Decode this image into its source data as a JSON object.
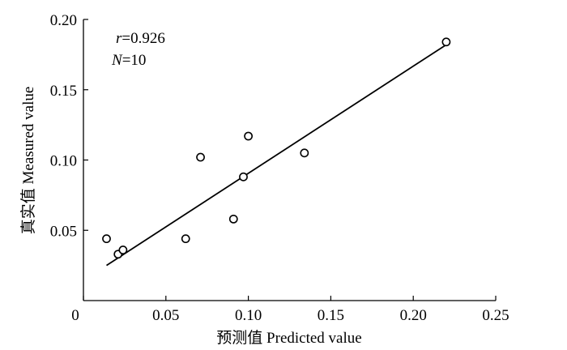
{
  "chart_data": {
    "type": "scatter",
    "xlabel": "预测值 Predicted value",
    "ylabel": "真实值 Measured value",
    "xlim": [
      0,
      0.25
    ],
    "ylim": [
      0,
      0.2
    ],
    "x_ticks": [
      "0",
      "0.05",
      "0.10",
      "0.15",
      "0.20",
      "0.25"
    ],
    "y_ticks": [
      "0.05",
      "0.10",
      "0.15",
      "0.20"
    ],
    "points": [
      {
        "x": 0.014,
        "y": 0.044
      },
      {
        "x": 0.021,
        "y": 0.033
      },
      {
        "x": 0.024,
        "y": 0.036
      },
      {
        "x": 0.062,
        "y": 0.044
      },
      {
        "x": 0.071,
        "y": 0.102
      },
      {
        "x": 0.091,
        "y": 0.058
      },
      {
        "x": 0.097,
        "y": 0.088
      },
      {
        "x": 0.1,
        "y": 0.117
      },
      {
        "x": 0.134,
        "y": 0.105
      },
      {
        "x": 0.22,
        "y": 0.184
      }
    ],
    "fit_line": {
      "x": [
        0.014,
        0.22
      ],
      "y": [
        0.025,
        0.182
      ]
    },
    "annotations": {
      "r_symbol": "r",
      "r_value": "=0.926",
      "n_symbol": "N",
      "n_value": "=10"
    },
    "grid": false,
    "marker": "open-circle"
  }
}
